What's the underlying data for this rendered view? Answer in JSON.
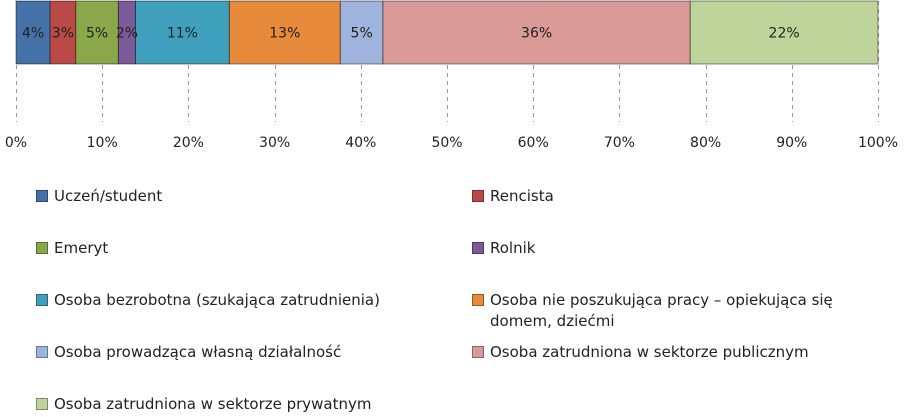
{
  "chart_data": {
    "type": "bar",
    "orientation": "horizontal",
    "stacked": true,
    "normalized": true,
    "categories": [
      ""
    ],
    "series": [
      {
        "name": "Uczeń/student",
        "values": [
          4
        ],
        "label": "4%",
        "color": "#4472a8"
      },
      {
        "name": "Rencista",
        "values": [
          3
        ],
        "label": "3%",
        "color": "#b94a48"
      },
      {
        "name": "Emeryt",
        "values": [
          5
        ],
        "label": "5%",
        "color": "#8aa84a"
      },
      {
        "name": "Rolnik",
        "values": [
          2
        ],
        "label": "2%",
        "color": "#7a5a98"
      },
      {
        "name": "Osoba bezrobotna (szukająca zatrudnienia)",
        "values": [
          11
        ],
        "label": "11%",
        "color": "#3ea0bc"
      },
      {
        "name": "Osoba nie poszukująca pracy – opiekująca się domem, dziećmi",
        "values": [
          13
        ],
        "label": "13%",
        "color": "#e88a3c"
      },
      {
        "name": "Osoba prowadząca własną działalność",
        "values": [
          5
        ],
        "label": "5%",
        "color": "#9fb4dc"
      },
      {
        "name": "Osoba zatrudniona w sektorze publicznym",
        "values": [
          36
        ],
        "label": "36%",
        "color": "#d99a98"
      },
      {
        "name": "Osoba zatrudniona w sektorze prywatnym",
        "values": [
          22
        ],
        "label": "22%",
        "color": "#bfd49a"
      }
    ],
    "xlim": [
      0,
      100
    ],
    "xticks": [
      "0%",
      "10%",
      "20%",
      "30%",
      "40%",
      "50%",
      "60%",
      "70%",
      "80%",
      "90%",
      "100%"
    ],
    "grid": "vertical-dashed",
    "legend_position": "bottom",
    "title": "",
    "xlabel": "",
    "ylabel": ""
  }
}
